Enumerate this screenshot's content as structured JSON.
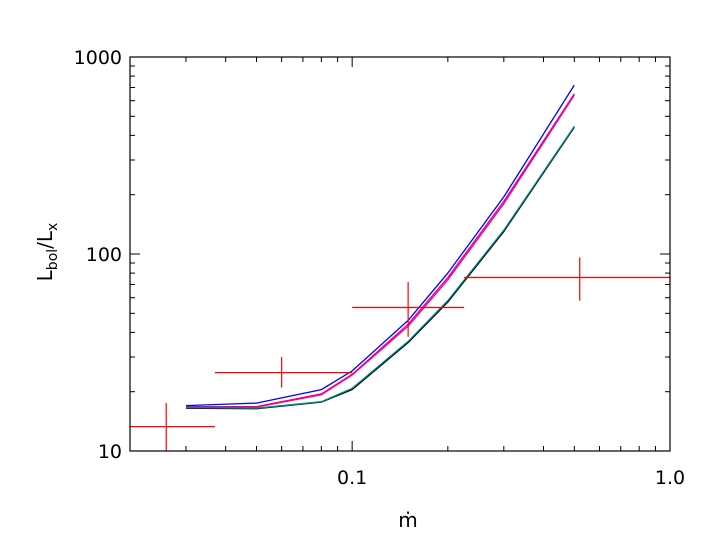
{
  "chart_data": {
    "type": "line",
    "xscale": "log",
    "yscale": "log",
    "xlim": [
      0.02,
      1.0
    ],
    "ylim": [
      10,
      1000
    ],
    "xlabel": "ṁ",
    "ylabel": "L_bol/L_x",
    "ylabel_parts": {
      "main": "L",
      "sub1": "bol",
      "slash": "/",
      "main2": "L",
      "sub2": "x"
    },
    "x_ticks": [
      {
        "value": 0.1,
        "label": "0.1"
      },
      {
        "value": 1.0,
        "label": "1.0"
      }
    ],
    "y_ticks": [
      {
        "value": 10,
        "label": "10"
      },
      {
        "value": 100,
        "label": "100"
      },
      {
        "value": 1000,
        "label": "1000"
      }
    ],
    "grid": false,
    "series": [
      {
        "color": "#0000ff",
        "x": [
          0.03,
          0.05,
          0.08,
          0.1,
          0.15,
          0.2,
          0.3,
          0.5
        ],
        "y": [
          17.0,
          17.5,
          20.5,
          25.5,
          46.0,
          80.0,
          195.0,
          720.0
        ]
      },
      {
        "color": "#cc00cc",
        "x": [
          0.03,
          0.05,
          0.08,
          0.1,
          0.15,
          0.2,
          0.3,
          0.5
        ],
        "y": [
          16.8,
          16.8,
          19.5,
          24.5,
          44.0,
          76.0,
          185.0,
          650.0
        ]
      },
      {
        "color": "#ff0066",
        "x": [
          0.03,
          0.05,
          0.08,
          0.1,
          0.15,
          0.2,
          0.3,
          0.5
        ],
        "y": [
          16.7,
          16.7,
          19.3,
          24.3,
          43.0,
          74.0,
          180.0,
          640.0
        ]
      },
      {
        "color": "#000000",
        "x": [
          0.03,
          0.05,
          0.08,
          0.1,
          0.15,
          0.2,
          0.3,
          0.5
        ],
        "y": [
          16.5,
          16.4,
          17.7,
          20.5,
          35.5,
          57.0,
          130.0,
          440.0
        ]
      },
      {
        "color": "#008888",
        "x": [
          0.03,
          0.05,
          0.08,
          0.1,
          0.15,
          0.2,
          0.3,
          0.5
        ],
        "y": [
          16.6,
          16.5,
          17.8,
          20.8,
          36.0,
          58.0,
          132.0,
          445.0
        ]
      }
    ],
    "error_points": {
      "color": "#ff0000",
      "points": [
        {
          "x": 0.026,
          "y": 13.3,
          "x_err": [
            0.02,
            0.037
          ],
          "y_err": [
            10.0,
            17.5
          ]
        },
        {
          "x": 0.06,
          "y": 25.0,
          "x_err": [
            0.037,
            0.1
          ],
          "y_err": [
            21.0,
            30.0
          ]
        },
        {
          "x": 0.15,
          "y": 53.5,
          "x_err": [
            0.1,
            0.225
          ],
          "y_err": [
            38.0,
            72.0
          ]
        },
        {
          "x": 0.52,
          "y": 76.0,
          "x_err": [
            0.225,
            1.0
          ],
          "y_err": [
            58.0,
            96.0
          ]
        }
      ]
    }
  }
}
